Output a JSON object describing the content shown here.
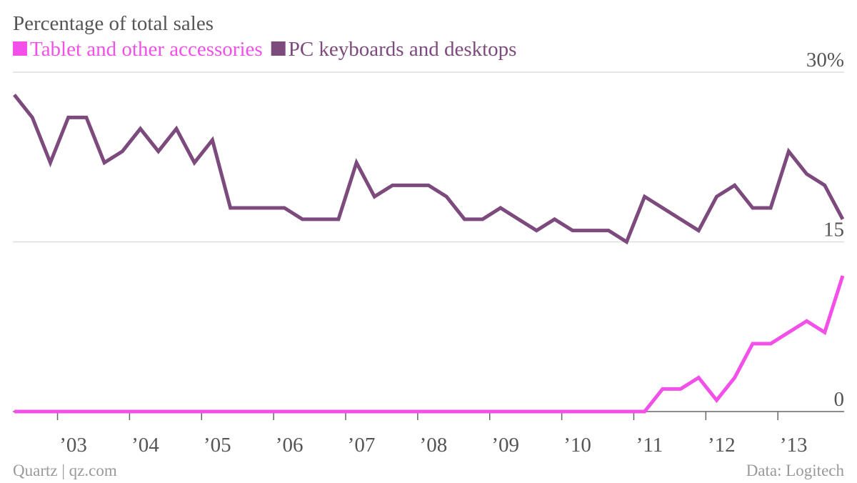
{
  "chart_data": {
    "type": "line",
    "title": "Percentage of total sales",
    "x": [
      2002.4,
      2002.65,
      2002.9,
      2003.15,
      2003.4,
      2003.65,
      2003.9,
      2004.15,
      2004.4,
      2004.65,
      2004.9,
      2005.15,
      2005.4,
      2005.65,
      2005.9,
      2006.15,
      2006.4,
      2006.65,
      2006.9,
      2007.15,
      2007.4,
      2007.65,
      2007.9,
      2008.15,
      2008.4,
      2008.65,
      2008.9,
      2009.15,
      2009.4,
      2009.65,
      2009.9,
      2010.15,
      2010.4,
      2010.65,
      2010.9,
      2011.15,
      2011.4,
      2011.65,
      2011.9,
      2012.15,
      2012.4,
      2012.65,
      2012.9,
      2013.15,
      2013.4,
      2013.65,
      2013.9
    ],
    "series": [
      {
        "name": "Tablet and other accessories",
        "color": "#f250e8",
        "values": [
          0,
          0,
          0,
          0,
          0,
          0,
          0,
          0,
          0,
          0,
          0,
          0,
          0,
          0,
          0,
          0,
          0,
          0,
          0,
          0,
          0,
          0,
          0,
          0,
          0,
          0,
          0,
          0,
          0,
          0,
          0,
          0,
          0,
          0,
          0,
          0,
          2,
          2,
          3,
          1,
          3,
          6,
          6,
          7,
          8,
          7,
          12
        ]
      },
      {
        "name": "PC keyboards and desktops",
        "color": "#7d4a7d",
        "values": [
          28,
          26,
          22,
          26,
          26,
          22,
          23,
          25,
          23,
          25,
          22,
          24,
          18,
          18,
          18,
          18,
          17,
          17,
          17,
          22,
          19,
          20,
          20,
          20,
          19,
          17,
          17,
          18,
          17,
          16,
          17,
          16,
          16,
          16,
          15,
          19,
          18,
          17,
          16,
          19,
          20,
          18,
          18,
          23,
          21,
          20,
          17
        ]
      }
    ],
    "xlim": [
      2002.38,
      2013.92
    ],
    "xticks": [
      {
        "value": 2003,
        "label": "’03"
      },
      {
        "value": 2004,
        "label": "’04"
      },
      {
        "value": 2005,
        "label": "’05"
      },
      {
        "value": 2006,
        "label": "’06"
      },
      {
        "value": 2007,
        "label": "’07"
      },
      {
        "value": 2008,
        "label": "’08"
      },
      {
        "value": 2009,
        "label": "’09"
      },
      {
        "value": 2010,
        "label": "’10"
      },
      {
        "value": 2011,
        "label": "’11"
      },
      {
        "value": 2012,
        "label": "’12"
      },
      {
        "value": 2013,
        "label": "’13"
      }
    ],
    "ylim": [
      0,
      30
    ],
    "yticks": [
      0,
      15,
      {
        "value": 30,
        "label": "30%"
      }
    ],
    "grid": true,
    "source": "Data: Logitech",
    "credit": "Quartz | qz.com"
  }
}
